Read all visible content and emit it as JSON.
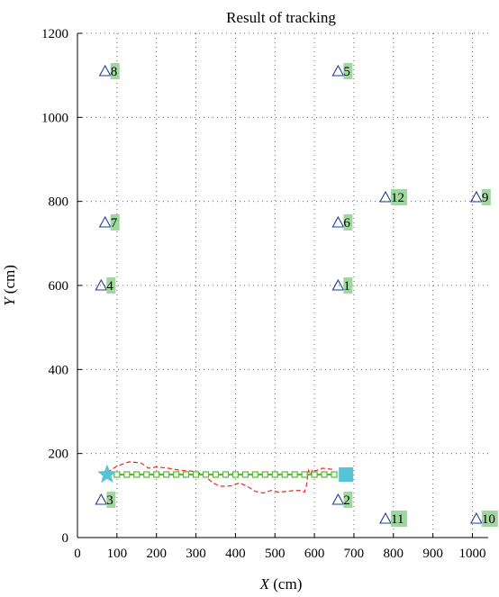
{
  "chart_data": {
    "type": "scatter",
    "title": "Result of tracking",
    "xlabel": {
      "var": "X",
      "unit": " (cm)"
    },
    "ylabel": {
      "var": "Y",
      "unit": " (cm)"
    },
    "xlim": [
      0,
      1040
    ],
    "ylim": [
      0,
      1200
    ],
    "xticks": [
      0,
      100,
      200,
      300,
      400,
      500,
      600,
      700,
      800,
      900,
      1000
    ],
    "yticks": [
      0,
      200,
      400,
      600,
      800,
      1000,
      1200
    ],
    "grid": true,
    "anchors": [
      {
        "label": "1",
        "x": 660,
        "y": 600
      },
      {
        "label": "2",
        "x": 660,
        "y": 90
      },
      {
        "label": "3",
        "x": 60,
        "y": 90
      },
      {
        "label": "4",
        "x": 60,
        "y": 600
      },
      {
        "label": "5",
        "x": 660,
        "y": 1110
      },
      {
        "label": "6",
        "x": 660,
        "y": 750
      },
      {
        "label": "7",
        "x": 70,
        "y": 750
      },
      {
        "label": "8",
        "x": 70,
        "y": 1110
      },
      {
        "label": "9",
        "x": 1010,
        "y": 810
      },
      {
        "label": "10",
        "x": 1010,
        "y": 45
      },
      {
        "label": "11",
        "x": 780,
        "y": 45
      },
      {
        "label": "12",
        "x": 780,
        "y": 810
      }
    ],
    "series": [
      {
        "kind": "true-path",
        "color": "#55bb33",
        "marker": "hollow-square",
        "x": [
          100,
          125,
          150,
          175,
          200,
          225,
          250,
          275,
          300,
          325,
          350,
          375,
          400,
          425,
          450,
          475,
          500,
          525,
          550,
          575,
          600,
          625,
          650
        ],
        "y": [
          150,
          150,
          150,
          150,
          150,
          150,
          150,
          150,
          150,
          150,
          150,
          150,
          150,
          150,
          150,
          150,
          150,
          150,
          150,
          150,
          150,
          150,
          150
        ]
      },
      {
        "kind": "estimated-path",
        "color": "#e8262a",
        "style": "dashed",
        "x": [
          75,
          100,
          130,
          160,
          180,
          200,
          230,
          260,
          290,
          320,
          340,
          360,
          390,
          410,
          430,
          450,
          470,
          490,
          510,
          530,
          550,
          565,
          575,
          580,
          585,
          590,
          595,
          600,
          620,
          650
        ],
        "y": [
          155,
          170,
          180,
          178,
          165,
          168,
          165,
          160,
          158,
          150,
          132,
          122,
          123,
          130,
          122,
          110,
          106,
          112,
          108,
          110,
          112,
          112,
          108,
          125,
          160,
          150,
          162,
          158,
          165,
          162
        ]
      }
    ],
    "start": {
      "x": 75,
      "y": 150,
      "marker": "star",
      "color": "#55c3d8"
    },
    "end": {
      "x": 680,
      "y": 150,
      "marker": "filled-square",
      "color": "#55c3d8"
    },
    "anchor_color": "#1f3f99",
    "anchor_label_bg": "#9fd79f"
  }
}
